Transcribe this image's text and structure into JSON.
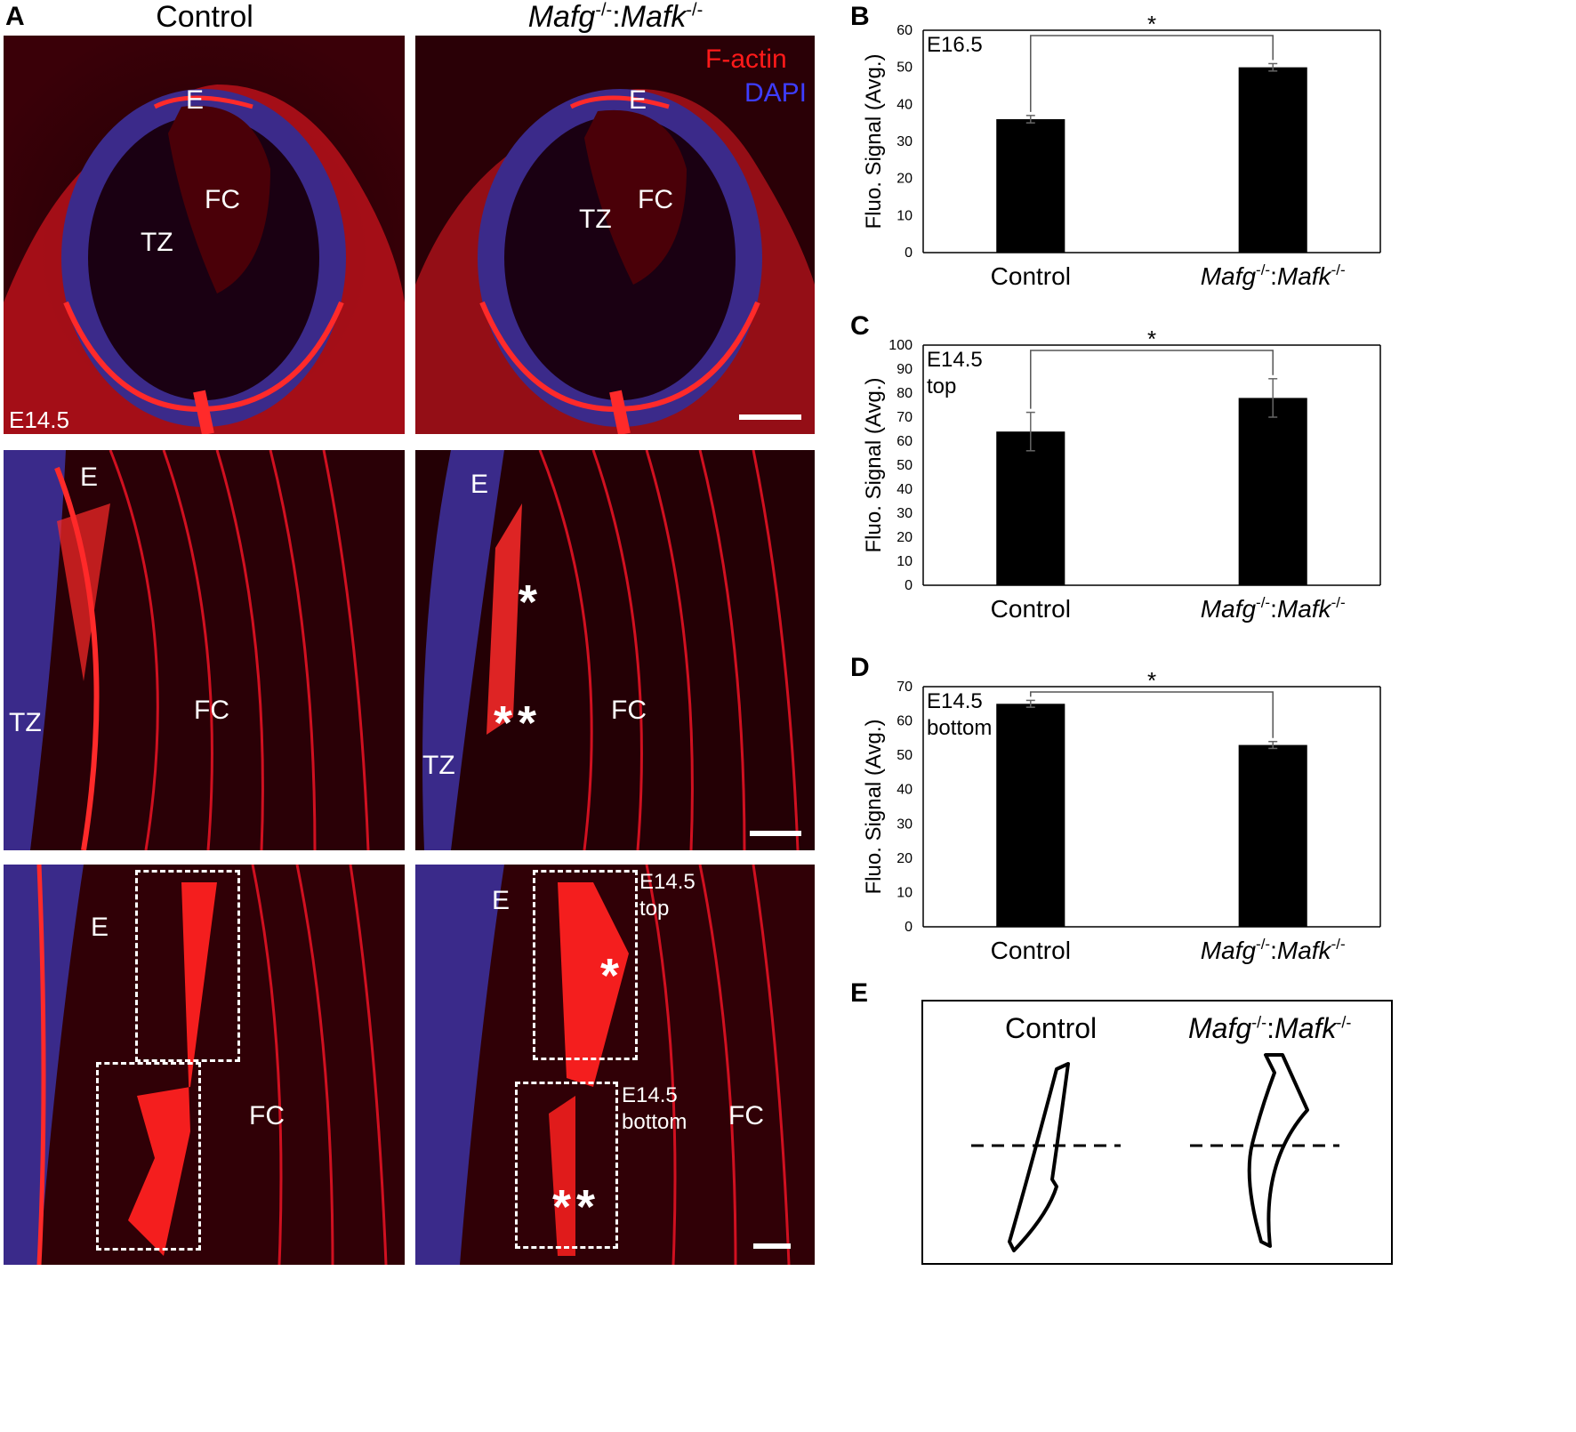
{
  "panel_letters": {
    "a": "A",
    "b": "B",
    "c": "C",
    "d": "D",
    "e": "E"
  },
  "column_headers": {
    "left": "Control",
    "right_gene1": "Mafg",
    "right_sup1": "-/-",
    "right_sep": ":",
    "right_gene2": "Mafk",
    "right_sup2": "-/-"
  },
  "micro_labels": {
    "epithelium": "E",
    "fiber_cells": "FC",
    "transition_zone": "TZ",
    "stage": "E14.5",
    "legend_red": "F-actin",
    "legend_blue": "DAPI",
    "single_star": "*",
    "double_star": "**",
    "box_top_line1": "E14.5",
    "box_top_line2": "top",
    "box_bottom_line1": "E14.5",
    "box_bottom_line2": "bottom"
  },
  "chart_data": [
    {
      "type": "bar",
      "panel": "B",
      "categories": [
        "Control",
        "Mafg-/-:Mafk-/-"
      ],
      "values": [
        36,
        50
      ],
      "errors": [
        1,
        1
      ],
      "ylabel": "Fluo. Signal (Avg.)",
      "annotation": "E16.5",
      "annotation2": "",
      "ylim": [
        0,
        60
      ],
      "yticks": [
        0,
        10,
        20,
        30,
        40,
        50,
        60
      ],
      "significance": "*"
    },
    {
      "type": "bar",
      "panel": "C",
      "categories": [
        "Control",
        "Mafg-/-:Mafk-/-"
      ],
      "values": [
        64,
        78
      ],
      "errors": [
        8,
        8
      ],
      "ylabel": "Fluo. Signal (Avg.)",
      "annotation": "E14.5",
      "annotation2": "top",
      "ylim": [
        0,
        100
      ],
      "yticks": [
        0,
        10,
        20,
        30,
        40,
        50,
        60,
        70,
        80,
        90,
        100
      ],
      "significance": "*"
    },
    {
      "type": "bar",
      "panel": "D",
      "categories": [
        "Control",
        "Mafg-/-:Mafk-/-"
      ],
      "values": [
        65,
        53
      ],
      "errors": [
        1,
        1
      ],
      "ylabel": "Fluo. Signal (Avg.)",
      "annotation": "E14.5",
      "annotation2": "bottom",
      "ylim": [
        0,
        70
      ],
      "yticks": [
        0,
        10,
        20,
        30,
        40,
        50,
        60,
        70
      ],
      "significance": "*"
    }
  ],
  "diagram": {
    "left_title": "Control"
  },
  "colors": {
    "phalloidin": "#ff1a1a",
    "dapi": "#3d3dff",
    "bar": "#000000"
  }
}
